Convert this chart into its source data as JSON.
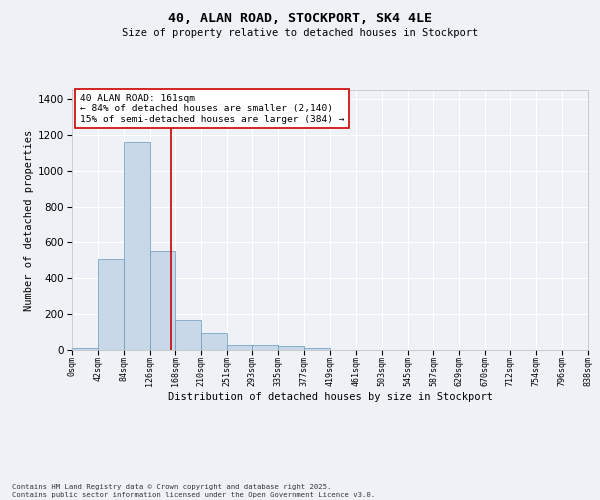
{
  "title": "40, ALAN ROAD, STOCKPORT, SK4 4LE",
  "subtitle": "Size of property relative to detached houses in Stockport",
  "xlabel": "Distribution of detached houses by size in Stockport",
  "ylabel": "Number of detached properties",
  "footer_line1": "Contains HM Land Registry data © Crown copyright and database right 2025.",
  "footer_line2": "Contains public sector information licensed under the Open Government Licence v3.0.",
  "property_size": 161,
  "property_label": "40 ALAN ROAD: 161sqm",
  "annotation_line2": "← 84% of detached houses are smaller (2,140)",
  "annotation_line3": "15% of semi-detached houses are larger (384) →",
  "bar_color": "#c8d8e8",
  "bar_edge_color": "#6699bb",
  "vline_color": "#cc0000",
  "annotation_box_edge": "#cc0000",
  "background_color": "#eef2f7",
  "grid_color": "#ffffff",
  "bin_edges": [
    0,
    42,
    84,
    126,
    168,
    210,
    251,
    293,
    335,
    377,
    419,
    461,
    503,
    545,
    587,
    629,
    670,
    712,
    754,
    796,
    838
  ],
  "bin_labels": [
    "0sqm",
    "42sqm",
    "84sqm",
    "126sqm",
    "168sqm",
    "210sqm",
    "251sqm",
    "293sqm",
    "335sqm",
    "377sqm",
    "419sqm",
    "461sqm",
    "503sqm",
    "545sqm",
    "587sqm",
    "629sqm",
    "670sqm",
    "712sqm",
    "754sqm",
    "796sqm",
    "838sqm"
  ],
  "bar_heights": [
    10,
    510,
    1160,
    550,
    170,
    95,
    28,
    28,
    22,
    12,
    0,
    0,
    0,
    0,
    0,
    0,
    0,
    0,
    0,
    0
  ],
  "ylim": [
    0,
    1450
  ],
  "yticks": [
    0,
    200,
    400,
    600,
    800,
    1000,
    1200,
    1400
  ]
}
